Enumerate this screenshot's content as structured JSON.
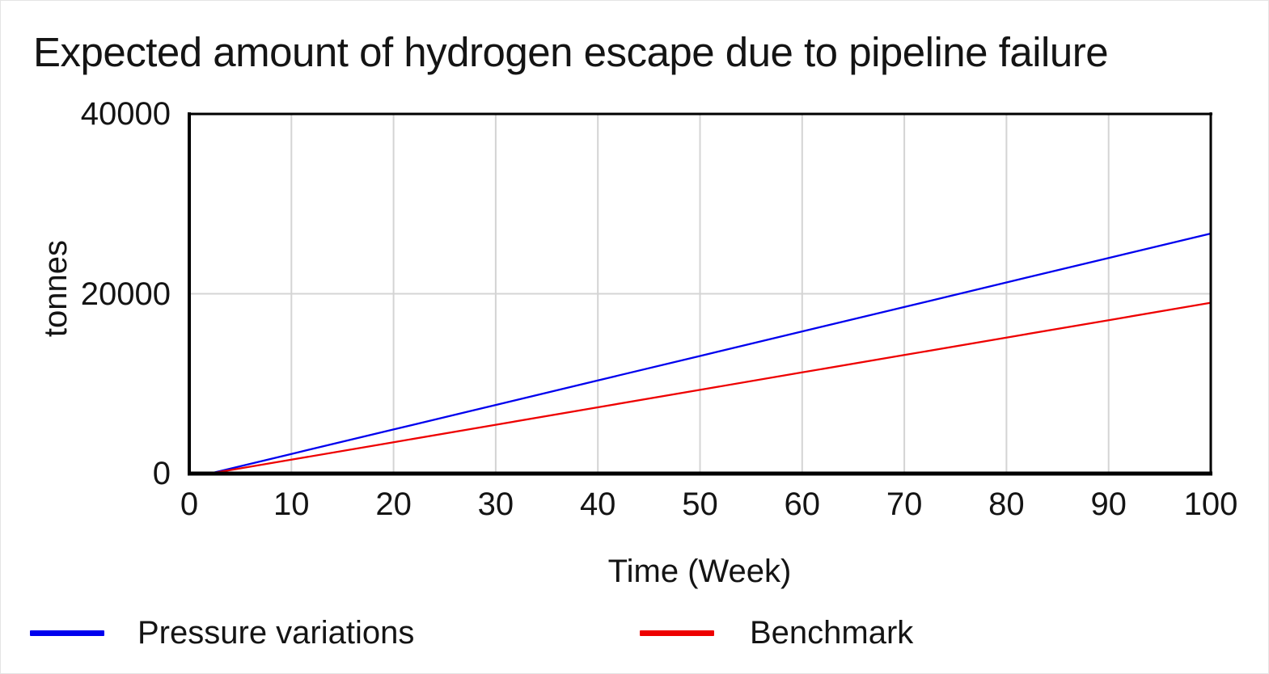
{
  "page": {
    "background": "#ffffff",
    "border_color": "#e4e4e4",
    "text_color": "#141414"
  },
  "chart_data": {
    "type": "line",
    "title": "Expected amount of hydrogen escape due to pipeline failure",
    "xlabel": "Time (Week)",
    "ylabel": "tonnes",
    "xlim": [
      0,
      100
    ],
    "ylim": [
      0,
      40000
    ],
    "x_ticks": [
      0,
      10,
      20,
      30,
      40,
      50,
      60,
      70,
      80,
      90,
      100
    ],
    "y_ticks": [
      0,
      20000,
      40000
    ],
    "grid": true,
    "gridline_color": "#d4d4d4",
    "frame_color": "#000000",
    "legend_position": "bottom",
    "x": [
      0,
      2,
      10,
      20,
      30,
      40,
      50,
      60,
      70,
      80,
      90,
      100
    ],
    "series": [
      {
        "name": "Pressure variations",
        "color": "#0000ee",
        "values": [
          0,
          0,
          2180,
          4910,
          7630,
          10360,
          13080,
          15810,
          18530,
          21260,
          23980,
          26700
        ]
      },
      {
        "name": "Benchmark",
        "color": "#ee0000",
        "values": [
          0,
          0,
          1550,
          3490,
          5430,
          7370,
          9310,
          11250,
          13190,
          15130,
          17060,
          19000
        ]
      }
    ]
  }
}
